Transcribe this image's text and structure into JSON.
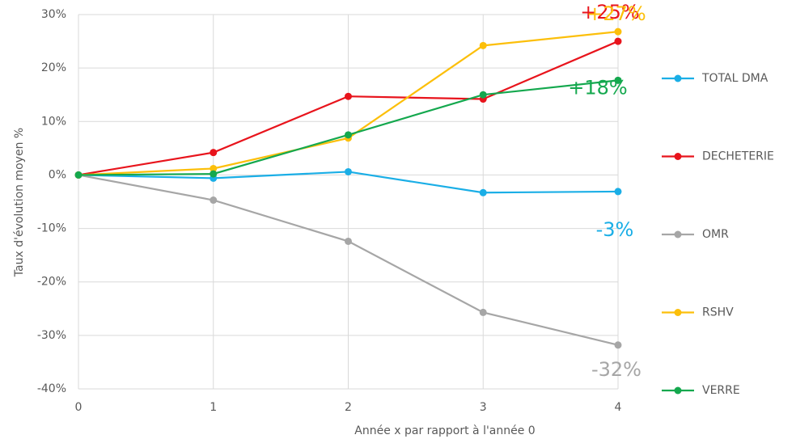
{
  "chart_data": {
    "type": "line",
    "xlabel": "Année x par rapport à l'année 0",
    "ylabel": "Taux d'évolution moyen  %",
    "x": [
      0,
      1,
      2,
      3,
      4
    ],
    "xlim": [
      0,
      4
    ],
    "xticks": [
      0,
      1,
      2,
      3,
      4
    ],
    "ylim": [
      -40,
      30
    ],
    "yticks": [
      {
        "value": -40,
        "label": "-40%"
      },
      {
        "value": -30,
        "label": "-30%"
      },
      {
        "value": -20,
        "label": "-20%"
      },
      {
        "value": -10,
        "label": "-10%"
      },
      {
        "value": 0,
        "label": "0%"
      },
      {
        "value": 10,
        "label": "10%"
      },
      {
        "value": 20,
        "label": "20%"
      },
      {
        "value": 30,
        "label": "30%"
      }
    ],
    "grid": true,
    "legend": "right",
    "series": [
      {
        "name": "TOTAL DMA",
        "color": "#1aaee6",
        "values": [
          0,
          -0.6,
          0.6,
          -3.3,
          -3.1
        ],
        "value_labels": [
          null,
          null,
          null,
          null,
          "-3%"
        ]
      },
      {
        "name": "DECHETERIE",
        "color": "#e8141c",
        "values": [
          0,
          4.2,
          14.7,
          14.2,
          25
        ],
        "value_labels": [
          null,
          null,
          null,
          null,
          "+25%"
        ]
      },
      {
        "name": "OMR",
        "color": "#a6a6a6",
        "values": [
          0,
          -4.7,
          -12.4,
          -25.7,
          -31.8
        ],
        "value_labels": [
          null,
          null,
          null,
          null,
          "-32%"
        ]
      },
      {
        "name": "RSHV",
        "color": "#fcbf0a",
        "values": [
          0,
          1.2,
          6.9,
          24.2,
          26.8
        ],
        "value_labels": [
          null,
          null,
          null,
          null,
          "+27%"
        ]
      },
      {
        "name": "VERRE",
        "color": "#14a84e",
        "values": [
          0,
          0.2,
          7.5,
          15.0,
          17.7
        ],
        "value_labels": [
          null,
          null,
          null,
          null,
          "+18%"
        ]
      }
    ]
  }
}
